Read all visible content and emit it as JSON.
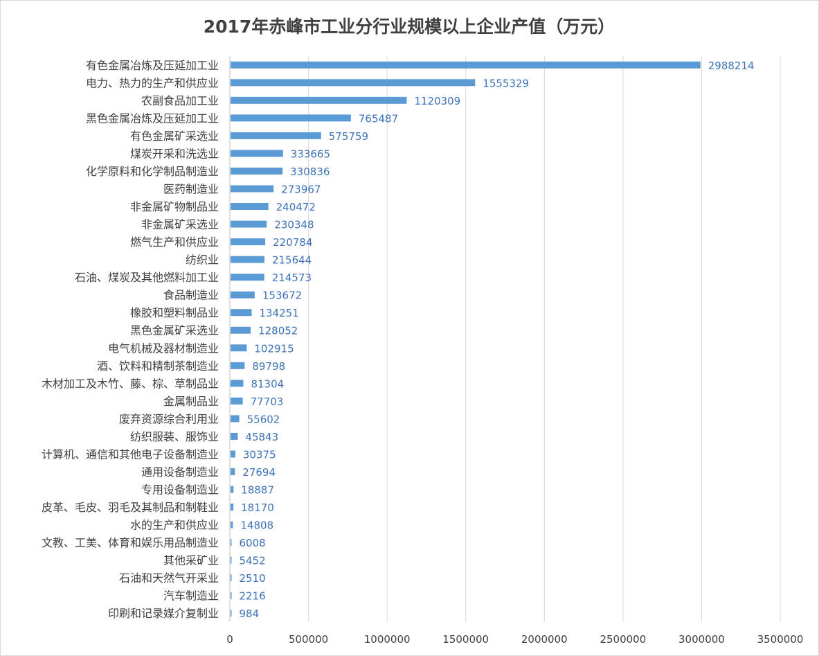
{
  "chart_data": {
    "type": "bar",
    "orientation": "horizontal",
    "title": "2017年赤峰市工业分行业规模以上企业产值（万元）",
    "xlim": [
      0,
      3500000
    ],
    "xticks": [
      "0",
      "500000",
      "1000000",
      "1500000",
      "2000000",
      "2500000",
      "3000000",
      "3500000"
    ],
    "grid": "vertical",
    "legend": "none",
    "bar_color": "#5b9bd5",
    "label_color": "#3d72b8",
    "categories": [
      "有色金属冶炼及压延加工业",
      "电力、热力的生产和供应业",
      "农副食品加工业",
      "黑色金属冶炼及压延加工业",
      "有色金属矿采选业",
      "煤炭开采和洗选业",
      "化学原料和化学制品制造业",
      "医药制造业",
      "非金属矿物制品业",
      "非金属矿采选业",
      "燃气生产和供应业",
      "纺织业",
      "石油、煤炭及其他燃料加工业",
      "食品制造业",
      "橡胶和塑料制品业",
      "黑色金属矿采选业",
      "电气机械及器材制造业",
      "酒、饮料和精制茶制造业",
      "木材加工及木竹、藤、棕、草制品业",
      "金属制品业",
      "废弃资源综合利用业",
      "纺织服装、服饰业",
      "计算机、通信和其他电子设备制造业",
      "通用设备制造业",
      "专用设备制造业",
      "皮革、毛皮、羽毛及其制品和制鞋业",
      "水的生产和供应业",
      "文教、工美、体育和娱乐用品制造业",
      "其他采矿业",
      "石油和天然气开采业",
      "汽车制造业",
      "印刷和记录媒介复制业"
    ],
    "values": [
      2988214,
      1555329,
      1120309,
      765487,
      575759,
      333665,
      330836,
      273967,
      240472,
      230348,
      220784,
      215644,
      214573,
      153672,
      134251,
      128052,
      102915,
      89798,
      81304,
      77703,
      55602,
      45843,
      30375,
      27694,
      18887,
      18170,
      14808,
      6008,
      5452,
      2510,
      2216,
      984
    ],
    "value_labels": [
      "2988214",
      "1555329",
      "1120309",
      "765487",
      "575759",
      "333665",
      "330836",
      "273967",
      "240472",
      "230348",
      "220784",
      "215644",
      "214573",
      "153672",
      "134251",
      "128052",
      "102915",
      "89798",
      "81304",
      "77703",
      "55602",
      "45843",
      "30375",
      "27694",
      "18887",
      "18170",
      "14808",
      "6008",
      "5452",
      "2510",
      "2216",
      "984"
    ]
  }
}
